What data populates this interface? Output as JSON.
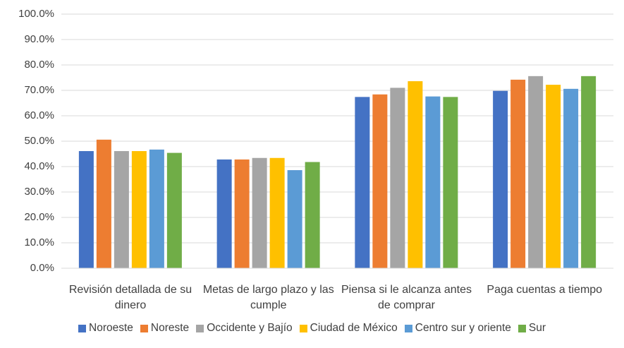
{
  "chart_data": {
    "type": "bar",
    "categories": [
      "Revisión detallada de su dinero",
      "Metas de largo plazo y las cumple",
      "Piensa si le alcanza antes de comprar",
      "Paga cuentas a tiempo"
    ],
    "series": [
      {
        "name": "Noroeste",
        "color": "#4472c4",
        "values": [
          46.1,
          42.8,
          67.4,
          69.8
        ]
      },
      {
        "name": "Noreste",
        "color": "#ed7d31",
        "values": [
          50.6,
          42.8,
          68.4,
          74.2
        ]
      },
      {
        "name": "Occidente y Bajío",
        "color": "#a5a5a5",
        "values": [
          46.1,
          43.4,
          71.0,
          75.6
        ]
      },
      {
        "name": "Ciudad de México",
        "color": "#ffc000",
        "values": [
          46.1,
          43.4,
          73.6,
          72.2
        ]
      },
      {
        "name": "Centro sur y oriente",
        "color": "#5b9bd5",
        "values": [
          46.7,
          38.6,
          67.6,
          70.6
        ]
      },
      {
        "name": "Sur",
        "color": "#70ad47",
        "values": [
          45.4,
          41.8,
          67.4,
          75.6
        ]
      }
    ],
    "ylim": [
      0,
      100
    ],
    "yticks": [
      {
        "value": 0,
        "label": "0.0%"
      },
      {
        "value": 10,
        "label": "10.0%"
      },
      {
        "value": 20,
        "label": "20.0%"
      },
      {
        "value": 30,
        "label": "30.0%"
      },
      {
        "value": 40,
        "label": "40.0%"
      },
      {
        "value": 50,
        "label": "50.0%"
      },
      {
        "value": 60,
        "label": "60.0%"
      },
      {
        "value": 70,
        "label": "70.0%"
      },
      {
        "value": 80,
        "label": "80.0%"
      },
      {
        "value": 90,
        "label": "90.0%"
      },
      {
        "value": 100,
        "label": "100.0%"
      }
    ],
    "grid": true,
    "legend": "bottom"
  }
}
